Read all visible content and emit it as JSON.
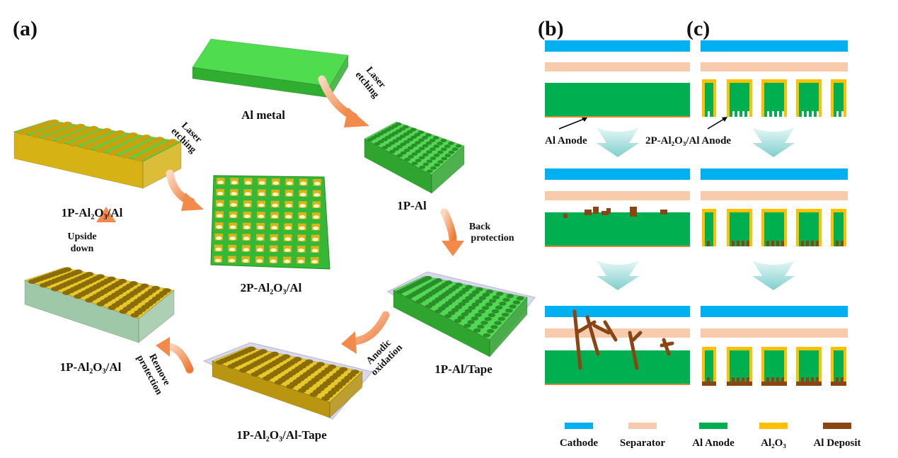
{
  "panels": {
    "a": "(a)",
    "b": "(b)",
    "c": "(c)"
  },
  "samples": {
    "al_metal": "Al metal",
    "p1_al": "1P-Al",
    "p1_al_tape": "1P-Al/Tape",
    "p1_al2o3_al_tape": "1P-Al₂O₃/Al-Tape",
    "p1_al2o3_al_bottom": "1P-Al₂O₃/Al",
    "p1_al2o3_al_top": "1P-Al₂O₃/Al",
    "p2_al2o3_al": "2P-Al₂O₃/Al"
  },
  "steps": {
    "laser_etching_1": [
      "Laser",
      "etching"
    ],
    "back_protection": [
      "Back",
      "protection"
    ],
    "anodic_oxidation": [
      "Anodic",
      "oxidation"
    ],
    "remove_protection": [
      "Remove",
      "protection"
    ],
    "upside_down": [
      "Upside",
      "down"
    ],
    "laser_etching_2": [
      "Laser",
      "etching"
    ]
  },
  "annotations": {
    "b_anode": "Al Anode",
    "c_anode": "2P-Al₂O₃/Al Anode"
  },
  "legend": [
    {
      "label": "Cathode",
      "color": "#00b0f0"
    },
    {
      "label": "Separator",
      "color": "#f8cbad"
    },
    {
      "label": "Al Anode",
      "color": "#00b050"
    },
    {
      "label": "Al₂O₃",
      "color": "#ffc000"
    },
    {
      "label": "Al Deposit",
      "color": "#8b4513"
    }
  ],
  "colors": {
    "arrow_orange": "#f28a4c",
    "arrow_teal": "#8fd6d4",
    "green": "#3fcf3f",
    "yellow": "#e5c21a",
    "tape": "#d8d8ec"
  }
}
